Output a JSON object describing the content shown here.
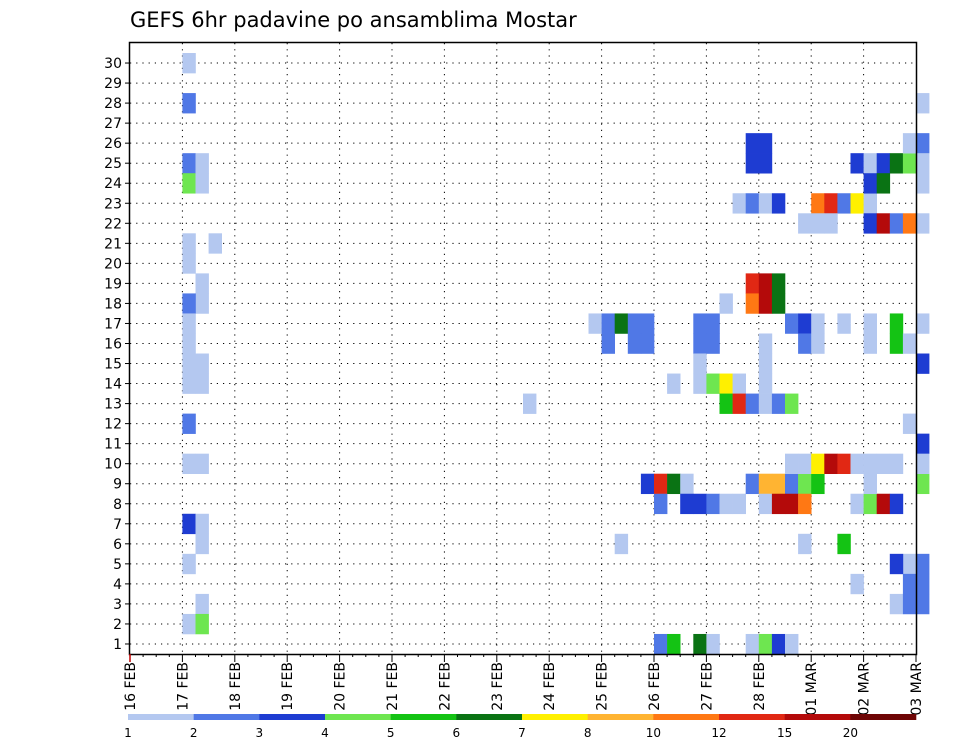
{
  "chart_data": {
    "type": "heatmap",
    "title": "GEFS 6hr padavine po ansamblima Mostar",
    "xlabel": "",
    "ylabel": "",
    "x_tick_labels": [
      "16 FEB",
      "17 FEB",
      "18 FEB",
      "19 FEB",
      "20 FEB",
      "21 FEB",
      "22 FEB",
      "23 FEB",
      "24 FEB",
      "25 FEB",
      "26 FEB",
      "27 FEB",
      "28 FEB",
      "01 MAR",
      "02 MAR",
      "03 MAR"
    ],
    "x_steps_per_day": 4,
    "ylim": [
      1,
      30
    ],
    "y_tick_labels": [
      "1",
      "2",
      "3",
      "4",
      "5",
      "6",
      "7",
      "8",
      "9",
      "10",
      "11",
      "12",
      "13",
      "14",
      "15",
      "16",
      "17",
      "18",
      "19",
      "20",
      "21",
      "22",
      "23",
      "24",
      "25",
      "26",
      "27",
      "28",
      "29",
      "30"
    ],
    "grid": true,
    "legend_position": "bottom",
    "color_levels": [
      {
        "color": "#b4c8f0",
        "min": 1,
        "max": 2
      },
      {
        "color": "#5078e6",
        "min": 2,
        "max": 3
      },
      {
        "color": "#1e3cd2",
        "min": 3,
        "max": 4
      },
      {
        "color": "#6ee650",
        "min": 4,
        "max": 5
      },
      {
        "color": "#14c314",
        "min": 5,
        "max": 6
      },
      {
        "color": "#0a7314",
        "min": 6,
        "max": 7
      },
      {
        "color": "#fff000",
        "min": 7,
        "max": 8
      },
      {
        "color": "#ffb432",
        "min": 8,
        "max": 10
      },
      {
        "color": "#ff7814",
        "min": 10,
        "max": 12
      },
      {
        "color": "#e12814",
        "min": 12,
        "max": 15
      },
      {
        "color": "#b40a0a",
        "min": 15,
        "max": 20
      },
      {
        "color": "#6e0505",
        "min": 20,
        "max": 25
      }
    ],
    "legend_labels": [
      "1",
      "2",
      "3",
      "4",
      "5",
      "6",
      "7",
      "8",
      "10",
      "12",
      "15",
      "20"
    ],
    "cells_note": "each cell = [time step index (0 = 16 FEB 00z, 6h steps), ensemble member, class index into color_levels]",
    "cells": [
      [
        4,
        30,
        0
      ],
      [
        4,
        28,
        1
      ],
      [
        4,
        25,
        1
      ],
      [
        5,
        25,
        0
      ],
      [
        4,
        24,
        3
      ],
      [
        5,
        24,
        0
      ],
      [
        4,
        21,
        0
      ],
      [
        6,
        21,
        0
      ],
      [
        4,
        20,
        0
      ],
      [
        5,
        19,
        0
      ],
      [
        5,
        18,
        0
      ],
      [
        4,
        18,
        1
      ],
      [
        4,
        17,
        0
      ],
      [
        4,
        16,
        0
      ],
      [
        4,
        15,
        0
      ],
      [
        5,
        15,
        0
      ],
      [
        4,
        14,
        0
      ],
      [
        5,
        14,
        0
      ],
      [
        4,
        12,
        1
      ],
      [
        4,
        10,
        0
      ],
      [
        5,
        10,
        0
      ],
      [
        4,
        7,
        2
      ],
      [
        5,
        7,
        0
      ],
      [
        5,
        6,
        0
      ],
      [
        4,
        5,
        0
      ],
      [
        5,
        3,
        0
      ],
      [
        4,
        2,
        0
      ],
      [
        5,
        2,
        3
      ],
      [
        30,
        13,
        0
      ],
      [
        35,
        17,
        0
      ],
      [
        36,
        17,
        1
      ],
      [
        37,
        17,
        5
      ],
      [
        38,
        17,
        1
      ],
      [
        39,
        17,
        1
      ],
      [
        36,
        16,
        1
      ],
      [
        38,
        16,
        1
      ],
      [
        39,
        16,
        1
      ],
      [
        43,
        17,
        1
      ],
      [
        44,
        17,
        1
      ],
      [
        43,
        16,
        1
      ],
      [
        44,
        16,
        1
      ],
      [
        37,
        6,
        0
      ],
      [
        39,
        9,
        2
      ],
      [
        40,
        9,
        9
      ],
      [
        41,
        9,
        5
      ],
      [
        42,
        9,
        0
      ],
      [
        40,
        8,
        1
      ],
      [
        42,
        8,
        2
      ],
      [
        43,
        8,
        2
      ],
      [
        44,
        8,
        1
      ],
      [
        45,
        8,
        0
      ],
      [
        46,
        8,
        0
      ],
      [
        40,
        1,
        1
      ],
      [
        41,
        1,
        4
      ],
      [
        43,
        1,
        5
      ],
      [
        44,
        1,
        0
      ],
      [
        47,
        1,
        0
      ],
      [
        48,
        1,
        3
      ],
      [
        49,
        1,
        2
      ],
      [
        50,
        1,
        0
      ],
      [
        41,
        14,
        0
      ],
      [
        43,
        14,
        0
      ],
      [
        44,
        14,
        3
      ],
      [
        45,
        14,
        6
      ],
      [
        46,
        14,
        0
      ],
      [
        48,
        14,
        0
      ],
      [
        43,
        15,
        0
      ],
      [
        48,
        15,
        0
      ],
      [
        45,
        13,
        4
      ],
      [
        46,
        13,
        9
      ],
      [
        47,
        13,
        1
      ],
      [
        48,
        13,
        0
      ],
      [
        49,
        13,
        1
      ],
      [
        50,
        13,
        3
      ],
      [
        45,
        18,
        0
      ],
      [
        47,
        19,
        9
      ],
      [
        48,
        19,
        10
      ],
      [
        49,
        19,
        5
      ],
      [
        47,
        18,
        8
      ],
      [
        48,
        18,
        10
      ],
      [
        49,
        18,
        5
      ],
      [
        46,
        23,
        0
      ],
      [
        47,
        23,
        1
      ],
      [
        48,
        23,
        0
      ],
      [
        49,
        23,
        2
      ],
      [
        47,
        26,
        2
      ],
      [
        48,
        26,
        2
      ],
      [
        47,
        25,
        2
      ],
      [
        48,
        25,
        2
      ],
      [
        47,
        9,
        1
      ],
      [
        48,
        9,
        7
      ],
      [
        49,
        9,
        7
      ],
      [
        50,
        9,
        1
      ],
      [
        51,
        9,
        3
      ],
      [
        52,
        9,
        4
      ],
      [
        48,
        8,
        0
      ],
      [
        49,
        8,
        10
      ],
      [
        50,
        8,
        10
      ],
      [
        51,
        8,
        8
      ],
      [
        48,
        16,
        0
      ],
      [
        50,
        17,
        1
      ],
      [
        51,
        17,
        2
      ],
      [
        52,
        17,
        0
      ],
      [
        51,
        16,
        1
      ],
      [
        52,
        16,
        0
      ],
      [
        50,
        10,
        0
      ],
      [
        51,
        10,
        0
      ],
      [
        52,
        10,
        6
      ],
      [
        53,
        10,
        10
      ],
      [
        54,
        10,
        9
      ],
      [
        55,
        10,
        0
      ],
      [
        56,
        10,
        0
      ],
      [
        57,
        10,
        0
      ],
      [
        58,
        10,
        0
      ],
      [
        51,
        22,
        0
      ],
      [
        52,
        23,
        8
      ],
      [
        53,
        23,
        9
      ],
      [
        54,
        23,
        1
      ],
      [
        55,
        23,
        6
      ],
      [
        56,
        23,
        0
      ],
      [
        52,
        22,
        0
      ],
      [
        53,
        22,
        0
      ],
      [
        54,
        17,
        0
      ],
      [
        56,
        17,
        0
      ],
      [
        58,
        17,
        4
      ],
      [
        58,
        16,
        4
      ],
      [
        59,
        16,
        0
      ],
      [
        56,
        16,
        0
      ],
      [
        55,
        25,
        2
      ],
      [
        56,
        25,
        0
      ],
      [
        57,
        25,
        2
      ],
      [
        58,
        25,
        5
      ],
      [
        59,
        25,
        3
      ],
      [
        56,
        24,
        2
      ],
      [
        57,
        24,
        5
      ],
      [
        56,
        22,
        2
      ],
      [
        57,
        22,
        10
      ],
      [
        58,
        22,
        1
      ],
      [
        59,
        22,
        8
      ],
      [
        60,
        22,
        0
      ],
      [
        55,
        8,
        0
      ],
      [
        56,
        8,
        3
      ],
      [
        57,
        8,
        10
      ],
      [
        58,
        8,
        2
      ],
      [
        56,
        9,
        0
      ],
      [
        54,
        6,
        4
      ],
      [
        51,
        6,
        0
      ],
      [
        59,
        5,
        0
      ],
      [
        58,
        5,
        2
      ],
      [
        60,
        5,
        1
      ],
      [
        59,
        4,
        1
      ],
      [
        60,
        4,
        1
      ],
      [
        55,
        4,
        0
      ],
      [
        58,
        3,
        0
      ],
      [
        59,
        3,
        1
      ],
      [
        60,
        3,
        1
      ],
      [
        59,
        12,
        0
      ],
      [
        60,
        11,
        2
      ],
      [
        60,
        9,
        3
      ],
      [
        59,
        26,
        0
      ],
      [
        60,
        26,
        1
      ],
      [
        60,
        28,
        0
      ],
      [
        60,
        15,
        2
      ],
      [
        60,
        25,
        0
      ],
      [
        60,
        24,
        0
      ],
      [
        60,
        17,
        0
      ],
      [
        60,
        10,
        0
      ]
    ]
  }
}
